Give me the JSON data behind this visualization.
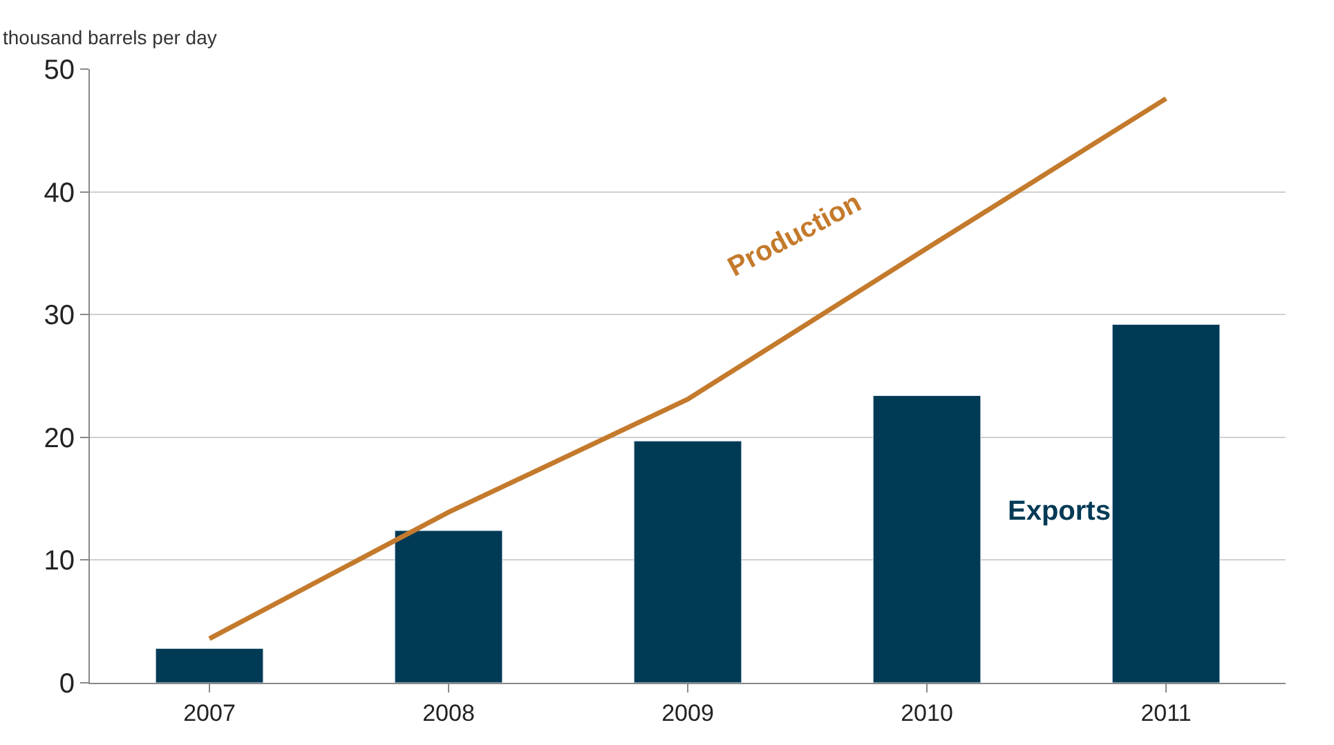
{
  "chart_data": {
    "type": "bar",
    "ylabel": "thousand barrels per day",
    "categories": [
      "2007",
      "2008",
      "2009",
      "2010",
      "2011"
    ],
    "series": [
      {
        "name": "Production",
        "type": "line",
        "color": "#c47a2c",
        "values": [
          3.6,
          13.9,
          23.1,
          35.4,
          47.6
        ]
      },
      {
        "name": "Exports",
        "color": "#003a55",
        "values": [
          2.8,
          12.4,
          19.7,
          23.4,
          29.2
        ]
      }
    ],
    "ylim": [
      0,
      50
    ],
    "yticks": [
      0,
      10,
      20,
      30,
      40,
      50
    ],
    "grid": "y",
    "legend": false
  }
}
